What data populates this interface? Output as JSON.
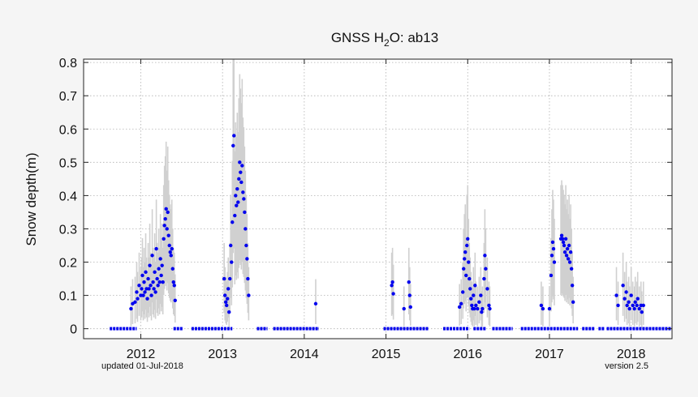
{
  "chart_data": {
    "type": "scatter",
    "title_prefix": "GNSS H",
    "title_sub": "2",
    "title_suffix": "O: ab13",
    "xlabel": "",
    "ylabel": "Snow depth(m)",
    "xlim": [
      2011.3,
      2018.5
    ],
    "ylim": [
      -0.03,
      0.81
    ],
    "x_ticks": [
      2012,
      2013,
      2014,
      2015,
      2016,
      2017,
      2018
    ],
    "y_ticks": [
      0,
      0.1,
      0.2,
      0.3,
      0.4,
      0.5,
      0.6,
      0.7,
      0.8
    ],
    "y_tick_labels": [
      "0",
      "0.1",
      "0.2",
      "0.3",
      "0.4",
      "0.5",
      "0.6",
      "0.7",
      "0.8"
    ],
    "grid": true,
    "point_color": "#0000ee",
    "band_color": "#d0d0d0",
    "zero_segments": [
      [
        2011.62,
        2011.95
      ],
      [
        2012.4,
        2012.52
      ],
      [
        2012.62,
        2013.12
      ],
      [
        2013.42,
        2013.55
      ],
      [
        2013.62,
        2014.18
      ],
      [
        2014.97,
        2015.52
      ],
      [
        2015.7,
        2016.02
      ],
      [
        2016.07,
        2016.22
      ],
      [
        2016.3,
        2016.55
      ],
      [
        2016.65,
        2017.35
      ],
      [
        2017.4,
        2017.55
      ],
      [
        2017.6,
        2017.67
      ],
      [
        2017.7,
        2018.5
      ]
    ],
    "points": [
      [
        2011.88,
        0.06
      ],
      [
        2011.9,
        0.075
      ],
      [
        2011.93,
        0.08
      ],
      [
        2011.95,
        0.11
      ],
      [
        2011.96,
        0.09
      ],
      [
        2011.98,
        0.13
      ],
      [
        2012.0,
        0.1
      ],
      [
        2012.01,
        0.12
      ],
      [
        2012.02,
        0.16
      ],
      [
        2012.03,
        0.1
      ],
      [
        2012.04,
        0.14
      ],
      [
        2012.05,
        0.11
      ],
      [
        2012.06,
        0.17
      ],
      [
        2012.07,
        0.12
      ],
      [
        2012.08,
        0.09
      ],
      [
        2012.09,
        0.15
      ],
      [
        2012.1,
        0.12
      ],
      [
        2012.11,
        0.19
      ],
      [
        2012.12,
        0.13
      ],
      [
        2012.13,
        0.1
      ],
      [
        2012.14,
        0.22
      ],
      [
        2012.15,
        0.14
      ],
      [
        2012.16,
        0.12
      ],
      [
        2012.17,
        0.17
      ],
      [
        2012.18,
        0.11
      ],
      [
        2012.19,
        0.24
      ],
      [
        2012.2,
        0.15
      ],
      [
        2012.21,
        0.13
      ],
      [
        2012.22,
        0.18
      ],
      [
        2012.23,
        0.14
      ],
      [
        2012.24,
        0.21
      ],
      [
        2012.25,
        0.16
      ],
      [
        2012.26,
        0.19
      ],
      [
        2012.27,
        0.14
      ],
      [
        2012.28,
        0.27
      ],
      [
        2012.29,
        0.31
      ],
      [
        2012.3,
        0.33
      ],
      [
        2012.31,
        0.36
      ],
      [
        2012.32,
        0.3
      ],
      [
        2012.33,
        0.35
      ],
      [
        2012.34,
        0.28
      ],
      [
        2012.35,
        0.25
      ],
      [
        2012.36,
        0.23
      ],
      [
        2012.37,
        0.22
      ],
      [
        2012.38,
        0.24
      ],
      [
        2012.39,
        0.18
      ],
      [
        2012.4,
        0.14
      ],
      [
        2012.41,
        0.13
      ],
      [
        2012.42,
        0.085
      ],
      [
        2013.02,
        0.15
      ],
      [
        2013.03,
        0.1
      ],
      [
        2013.04,
        0.08
      ],
      [
        2013.05,
        0.07
      ],
      [
        2013.06,
        0.09
      ],
      [
        2013.07,
        0.12
      ],
      [
        2013.08,
        0.05
      ],
      [
        2013.09,
        0.15
      ],
      [
        2013.1,
        0.25
      ],
      [
        2013.11,
        0.2
      ],
      [
        2013.12,
        0.32
      ],
      [
        2013.13,
        0.55
      ],
      [
        2013.14,
        0.58
      ],
      [
        2013.15,
        0.34
      ],
      [
        2013.16,
        0.4
      ],
      [
        2013.17,
        0.37
      ],
      [
        2013.18,
        0.42
      ],
      [
        2013.19,
        0.38
      ],
      [
        2013.2,
        0.45
      ],
      [
        2013.21,
        0.5
      ],
      [
        2013.22,
        0.47
      ],
      [
        2013.23,
        0.44
      ],
      [
        2013.24,
        0.49
      ],
      [
        2013.25,
        0.41
      ],
      [
        2013.26,
        0.39
      ],
      [
        2013.27,
        0.35
      ],
      [
        2013.28,
        0.3
      ],
      [
        2013.29,
        0.25
      ],
      [
        2013.3,
        0.21
      ],
      [
        2013.31,
        0.15
      ],
      [
        2013.32,
        0.1
      ],
      [
        2014.14,
        0.075
      ],
      [
        2015.07,
        0.13
      ],
      [
        2015.08,
        0.14
      ],
      [
        2015.09,
        0.105
      ],
      [
        2015.22,
        0.06
      ],
      [
        2015.28,
        0.14
      ],
      [
        2015.29,
        0.1
      ],
      [
        2015.3,
        0.065
      ],
      [
        2015.9,
        0.065
      ],
      [
        2015.92,
        0.075
      ],
      [
        2015.94,
        0.11
      ],
      [
        2015.95,
        0.18
      ],
      [
        2015.96,
        0.21
      ],
      [
        2015.97,
        0.23
      ],
      [
        2015.98,
        0.16
      ],
      [
        2015.99,
        0.25
      ],
      [
        2016.0,
        0.27
      ],
      [
        2016.01,
        0.2
      ],
      [
        2016.02,
        0.15
      ],
      [
        2016.03,
        0.12
      ],
      [
        2016.04,
        0.09
      ],
      [
        2016.05,
        0.07
      ],
      [
        2016.06,
        0.06
      ],
      [
        2016.07,
        0.1
      ],
      [
        2016.08,
        0.06
      ],
      [
        2016.09,
        0.13
      ],
      [
        2016.1,
        0.07
      ],
      [
        2016.12,
        0.06
      ],
      [
        2016.14,
        0.08
      ],
      [
        2016.16,
        0.1
      ],
      [
        2016.17,
        0.05
      ],
      [
        2016.18,
        0.06
      ],
      [
        2016.2,
        0.15
      ],
      [
        2016.21,
        0.22
      ],
      [
        2016.22,
        0.18
      ],
      [
        2016.24,
        0.12
      ],
      [
        2016.26,
        0.07
      ],
      [
        2016.27,
        0.06
      ],
      [
        2016.9,
        0.07
      ],
      [
        2016.92,
        0.06
      ],
      [
        2017.0,
        0.06
      ],
      [
        2017.02,
        0.16
      ],
      [
        2017.03,
        0.22
      ],
      [
        2017.04,
        0.26
      ],
      [
        2017.05,
        0.24
      ],
      [
        2017.06,
        0.2
      ],
      [
        2017.14,
        0.27
      ],
      [
        2017.15,
        0.28
      ],
      [
        2017.16,
        0.27
      ],
      [
        2017.17,
        0.26
      ],
      [
        2017.18,
        0.25
      ],
      [
        2017.19,
        0.23
      ],
      [
        2017.2,
        0.27
      ],
      [
        2017.21,
        0.22
      ],
      [
        2017.22,
        0.24
      ],
      [
        2017.23,
        0.21
      ],
      [
        2017.24,
        0.25
      ],
      [
        2017.25,
        0.2
      ],
      [
        2017.26,
        0.23
      ],
      [
        2017.27,
        0.18
      ],
      [
        2017.28,
        0.13
      ],
      [
        2017.29,
        0.08
      ],
      [
        2017.82,
        0.1
      ],
      [
        2017.84,
        0.07
      ],
      [
        2017.9,
        0.13
      ],
      [
        2017.92,
        0.09
      ],
      [
        2017.94,
        0.11
      ],
      [
        2017.95,
        0.07
      ],
      [
        2017.97,
        0.08
      ],
      [
        2017.98,
        0.06
      ],
      [
        2018.0,
        0.1
      ],
      [
        2018.02,
        0.07
      ],
      [
        2018.04,
        0.06
      ],
      [
        2018.05,
        0.08
      ],
      [
        2018.07,
        0.07
      ],
      [
        2018.08,
        0.09
      ],
      [
        2018.1,
        0.06
      ],
      [
        2018.12,
        0.07
      ],
      [
        2018.13,
        0.05
      ],
      [
        2018.15,
        0.07
      ]
    ],
    "footer_left": "updated 01-Jul-2018",
    "footer_right": "version 2.5"
  }
}
